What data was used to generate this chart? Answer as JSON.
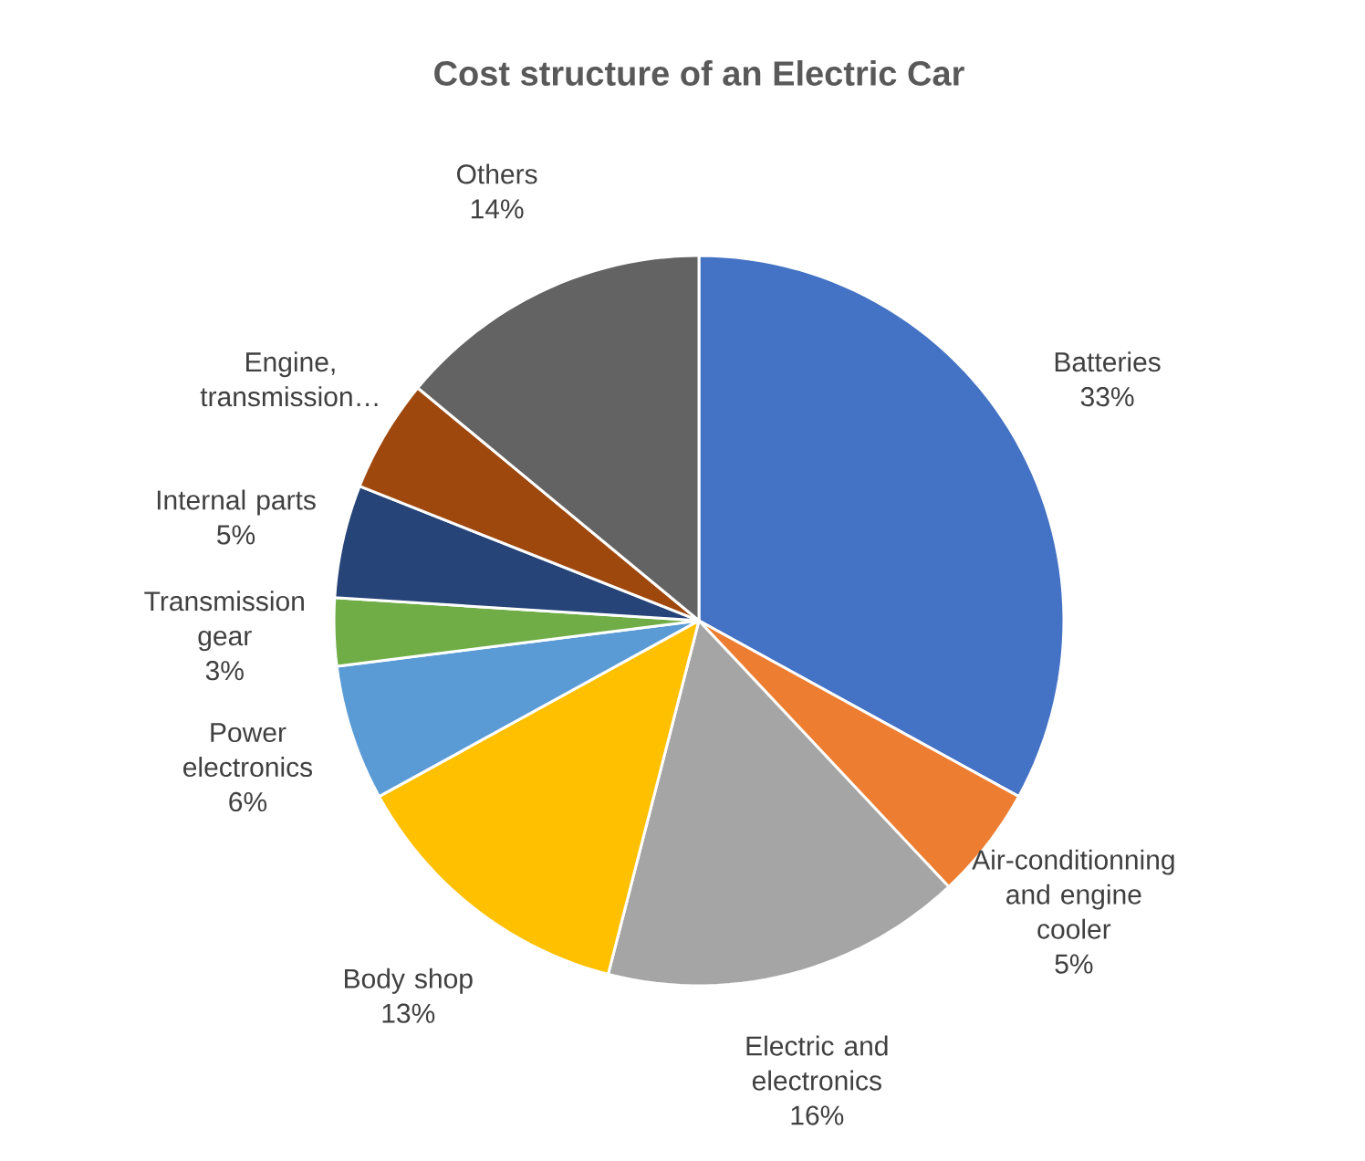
{
  "chart_data": {
    "type": "pie",
    "title": "Cost structure of an Electric Car",
    "categories": [
      "Batteries",
      "Air-conditionning and engine cooler",
      "Electric and electronics",
      "Body shop",
      "Power electronics",
      "Transmission gear",
      "Internal parts",
      "Engine, transmission…",
      "Others"
    ],
    "values": [
      33,
      5,
      16,
      13,
      6,
      3,
      5,
      5,
      14
    ],
    "colors": [
      "#4472c4",
      "#ed7d31",
      "#a5a5a5",
      "#ffc000",
      "#5b9bd5",
      "#70ad47",
      "#264478",
      "#9e480e",
      "#636363"
    ],
    "value_labels": [
      "33%",
      "5%",
      "16%",
      "13%",
      "6%",
      "3%",
      "5%",
      null,
      "14%"
    ]
  }
}
